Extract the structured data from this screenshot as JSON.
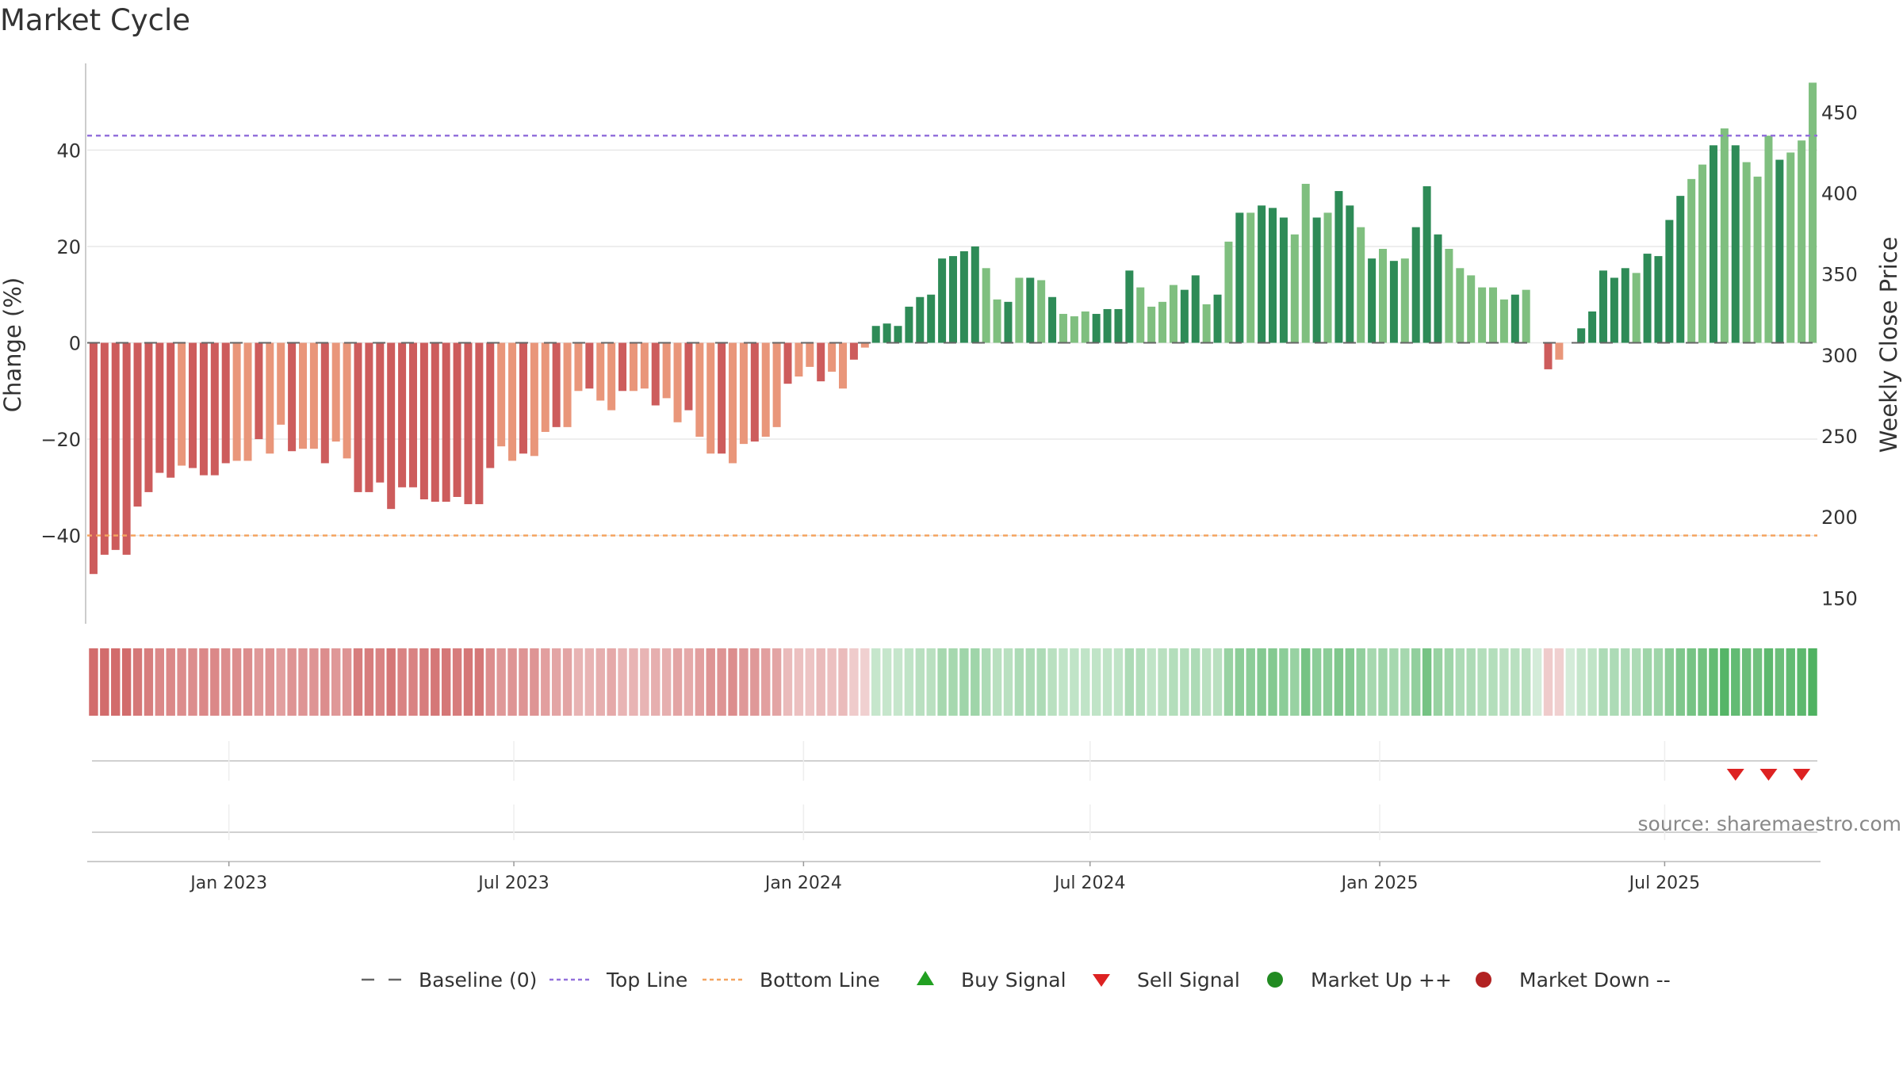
{
  "chart_data": {
    "type": "bar",
    "title": "Market Cycle",
    "ylabel_left": "Change (%)",
    "ylabel_right": "Weekly Close Price",
    "ylim_left": [
      -58,
      58
    ],
    "yticks_left": [
      -40,
      -20,
      0,
      20,
      40
    ],
    "ytick_labels_left": [
      "−40",
      "−20",
      "0",
      "20",
      "40"
    ],
    "ylim_right": [
      135,
      480
    ],
    "yticks_right": [
      150,
      200,
      250,
      300,
      350,
      400,
      450
    ],
    "ytick_labels_right": [
      "150",
      "200",
      "250",
      "300",
      "350",
      "400",
      "450"
    ],
    "top_line": 43,
    "bottom_line": -40,
    "x_start": "2022-10-03",
    "x_end": "2025-10-06",
    "week_start": "2022-10-07",
    "xticks": [
      {
        "label": "Jan 2023",
        "date": "2023-01-01"
      },
      {
        "label": "Jul 2023",
        "date": "2023-07-01"
      },
      {
        "label": "Jan 2024",
        "date": "2024-01-01"
      },
      {
        "label": "Jul 2024",
        "date": "2024-07-01"
      },
      {
        "label": "Jan 2025",
        "date": "2025-01-01"
      },
      {
        "label": "Jul 2025",
        "date": "2025-07-01"
      }
    ],
    "values": [
      -48,
      -44,
      -43,
      -44,
      -34,
      -31,
      -27,
      -28,
      -25.5,
      -26,
      -27.5,
      -27.5,
      -25,
      -24.5,
      -24.5,
      -20,
      -23,
      -17,
      -22.5,
      -22,
      -22,
      -25,
      -20.5,
      -24,
      -31,
      -31,
      -29,
      -34.5,
      -30,
      -30,
      -32.5,
      -33,
      -33,
      -32,
      -33.5,
      -33.5,
      -26,
      -21.5,
      -24.5,
      -23,
      -23.5,
      -18.5,
      -17.5,
      -17.5,
      -10,
      -9.5,
      -12,
      -14,
      -10,
      -10,
      -9.5,
      -13,
      -11.5,
      -16.5,
      -14,
      -19.5,
      -23,
      -23,
      -25,
      -21,
      -20.5,
      -19.5,
      -17.5,
      -8.5,
      -7,
      -5,
      -8,
      -6,
      -9.5,
      -3.5,
      -1,
      3.5,
      4,
      3.5,
      7.5,
      9.5,
      10,
      17.5,
      18,
      19,
      20,
      15.5,
      9,
      8.5,
      13.5,
      13.5,
      13,
      9.5,
      6,
      5.5,
      6.5,
      6,
      7,
      7,
      15,
      11.5,
      7.5,
      8.5,
      12,
      11,
      14,
      8,
      10,
      21,
      27,
      27,
      28.5,
      28,
      26,
      22.5,
      33,
      26,
      27,
      31.5,
      28.5,
      24,
      17.5,
      19.5,
      17,
      17.5,
      24,
      32.5,
      22.5,
      19.5,
      15.5,
      14,
      11.5,
      11.5,
      9,
      10,
      11,
      0,
      -5.5,
      -3.5,
      0,
      3,
      6.5,
      15,
      13.5,
      15.5,
      14.5,
      18.5,
      18,
      25.5,
      30.5,
      34,
      37,
      41,
      44.5,
      41,
      37.5,
      34.5,
      43,
      38,
      39.5,
      42,
      54
    ],
    "intensity": [
      1.0,
      1.0,
      1.0,
      1.0,
      0.9,
      0.85,
      0.75,
      0.75,
      0.7,
      0.7,
      0.75,
      0.75,
      0.7,
      0.7,
      0.7,
      0.6,
      0.65,
      0.55,
      0.65,
      0.65,
      0.65,
      0.7,
      0.6,
      0.65,
      0.85,
      0.85,
      0.8,
      0.9,
      0.8,
      0.8,
      0.85,
      0.9,
      0.9,
      0.85,
      0.9,
      0.9,
      0.7,
      0.6,
      0.65,
      0.65,
      0.65,
      0.55,
      0.5,
      0.5,
      0.35,
      0.35,
      0.4,
      0.45,
      0.35,
      0.35,
      0.35,
      0.4,
      0.4,
      0.5,
      0.45,
      0.55,
      0.65,
      0.65,
      0.7,
      0.6,
      0.6,
      0.55,
      0.5,
      0.3,
      0.25,
      0.2,
      0.3,
      0.25,
      0.3,
      0.15,
      0.1,
      0.1,
      0.1,
      0.1,
      0.15,
      0.2,
      0.2,
      0.35,
      0.35,
      0.4,
      0.4,
      0.3,
      0.2,
      0.2,
      0.3,
      0.3,
      0.3,
      0.2,
      0.15,
      0.15,
      0.15,
      0.15,
      0.15,
      0.15,
      0.3,
      0.25,
      0.15,
      0.2,
      0.25,
      0.25,
      0.3,
      0.2,
      0.2,
      0.45,
      0.55,
      0.55,
      0.6,
      0.6,
      0.55,
      0.45,
      0.7,
      0.55,
      0.55,
      0.65,
      0.6,
      0.5,
      0.35,
      0.4,
      0.35,
      0.35,
      0.5,
      0.7,
      0.45,
      0.4,
      0.3,
      0.3,
      0.25,
      0.25,
      0.2,
      0.2,
      0.2,
      0.0,
      0.15,
      0.1,
      0.0,
      0.1,
      0.15,
      0.3,
      0.3,
      0.3,
      0.3,
      0.4,
      0.4,
      0.55,
      0.65,
      0.7,
      0.75,
      0.85,
      0.95,
      0.85,
      0.8,
      0.75,
      0.9,
      0.8,
      0.85,
      0.9,
      1.0
    ],
    "momentum_up": [
      71,
      72,
      73,
      74,
      75,
      76,
      77,
      78,
      79,
      80,
      83,
      85,
      87,
      91,
      92,
      93,
      94,
      99,
      100,
      102,
      104,
      106,
      107,
      108,
      111,
      113,
      114,
      116,
      118,
      120,
      121,
      122,
      129,
      133,
      135,
      136,
      137,
      138,
      139,
      141,
      142,
      143,
      144,
      147,
      149,
      153
    ],
    "sell_signal_dates": [
      "2025-08-15",
      "2025-09-05",
      "2025-09-26"
    ],
    "colors": {
      "neg_strong": "#cd5c5c",
      "neg_weak": "#e9967a",
      "pos_strong": "#2e8b57",
      "pos_weak": "#7fbf7f",
      "top_line": "#9370db",
      "bottom_line": "#f4a460",
      "baseline": "#666666",
      "buy": "#22a022",
      "sell": "#dd2222",
      "up": "#228b22",
      "down": "#b22222"
    },
    "legend": [
      {
        "key": "baseline",
        "label": "Baseline (0)",
        "marker": "dash"
      },
      {
        "key": "top",
        "label": "Top Line",
        "marker": "dot-purple"
      },
      {
        "key": "bottom",
        "label": "Bottom Line",
        "marker": "dot-orange"
      },
      {
        "key": "buy",
        "label": "Buy Signal",
        "marker": "triangle-up"
      },
      {
        "key": "sell",
        "label": "Sell Signal",
        "marker": "triangle-down"
      },
      {
        "key": "up",
        "label": "Market Up ++",
        "marker": "circle-green"
      },
      {
        "key": "down",
        "label": "Market Down --",
        "marker": "circle-red"
      }
    ],
    "source": "source: sharemaestro.com"
  }
}
